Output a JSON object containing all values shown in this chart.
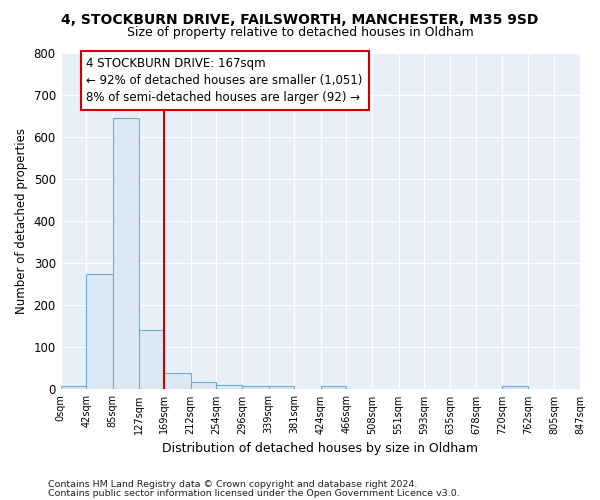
{
  "title": "4, STOCKBURN DRIVE, FAILSWORTH, MANCHESTER, M35 9SD",
  "subtitle": "Size of property relative to detached houses in Oldham",
  "xlabel": "Distribution of detached houses by size in Oldham",
  "ylabel": "Number of detached properties",
  "bar_edges": [
    0,
    42,
    85,
    127,
    169,
    212,
    254,
    296,
    339,
    381,
    424,
    466,
    508,
    551,
    593,
    635,
    678,
    720,
    762,
    805,
    847
  ],
  "bar_heights": [
    8,
    275,
    645,
    140,
    38,
    18,
    10,
    8,
    8,
    0,
    8,
    0,
    0,
    0,
    0,
    0,
    0,
    8,
    0,
    0
  ],
  "bar_color": "#dce9f5",
  "bar_edge_color": "#6aaed6",
  "vline_x": 169,
  "vline_color": "#cc0000",
  "annotation_text": "4 STOCKBURN DRIVE: 167sqm\n← 92% of detached houses are smaller (1,051)\n8% of semi-detached houses are larger (92) →",
  "annotation_box_color": "white",
  "annotation_box_edge": "#cc0000",
  "ylim": [
    0,
    800
  ],
  "xlim": [
    0,
    847
  ],
  "yticks": [
    0,
    100,
    200,
    300,
    400,
    500,
    600,
    700,
    800
  ],
  "plot_bg_color": "#e8eff8",
  "fig_bg_color": "#ffffff",
  "grid_color": "#ffffff",
  "footer_line1": "Contains HM Land Registry data © Crown copyright and database right 2024.",
  "footer_line2": "Contains public sector information licensed under the Open Government Licence v3.0."
}
